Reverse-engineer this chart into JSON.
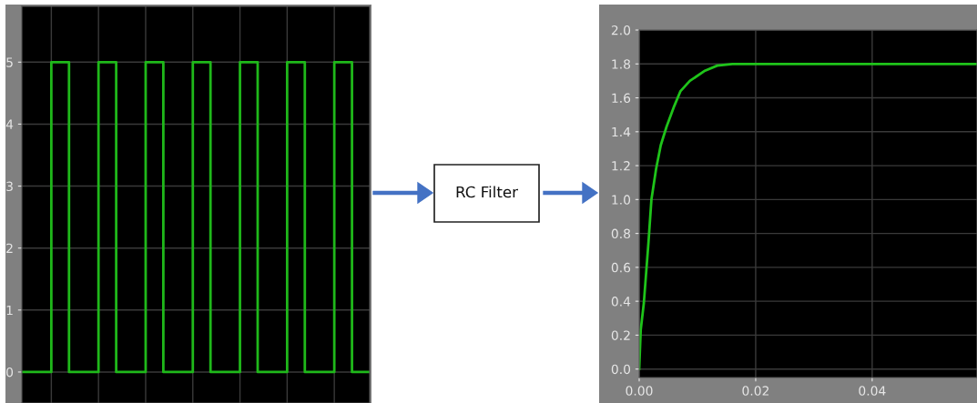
{
  "chart_data": [
    {
      "type": "step",
      "categories": [
        null,
        null,
        null,
        null,
        null,
        null,
        null,
        null,
        null,
        null,
        null,
        null,
        null,
        null,
        null,
        null,
        null,
        null,
        null,
        null,
        null,
        null,
        null,
        null,
        null,
        null,
        null,
        null,
        null,
        null,
        null,
        null,
        null,
        null,
        null,
        null,
        null,
        null,
        null,
        null,
        null,
        null,
        null,
        null,
        null,
        null,
        null,
        null,
        null,
        null,
        null,
        null,
        null,
        null,
        null,
        null,
        null,
        null,
        null,
        null
      ],
      "series": [
        {
          "color": "#1fb81a",
          "values": [
            0,
            0,
            0,
            0,
            0,
            5,
            5,
            5,
            0,
            0,
            0,
            0,
            0,
            5,
            5,
            5,
            0,
            0,
            0,
            0,
            0,
            5,
            5,
            5,
            0,
            0,
            0,
            0,
            0,
            5,
            5,
            5,
            0,
            0,
            0,
            0,
            0,
            5,
            5,
            5,
            0,
            0,
            0,
            0,
            0,
            5,
            5,
            5,
            0,
            0,
            0,
            0,
            0,
            5,
            5,
            5,
            0,
            0,
            0,
            0
          ]
        }
      ],
      "ylim": [
        -0.5,
        5.9
      ],
      "yticks": [
        0,
        1,
        2,
        3,
        4,
        5
      ],
      "grid": true,
      "tick_labels": "y"
    },
    {
      "type": "other",
      "annotations": [
        "RC Filter"
      ]
    },
    {
      "type": "line",
      "x": [
        0,
        0.00026,
        0.0008,
        0.0016,
        0.0021,
        0.0029,
        0.0037,
        0.0047,
        0.006,
        0.0071,
        0.0087,
        0.0113,
        0.0134,
        0.016,
        0.0213,
        0.058
      ],
      "series": [
        {
          "color": "#1fc41a",
          "values": [
            0,
            0.23,
            0.39,
            0.75,
            1.0,
            1.18,
            1.32,
            1.43,
            1.55,
            1.64,
            1.7,
            1.76,
            1.79,
            1.8,
            1.8,
            1.8
          ]
        }
      ],
      "xlim": [
        0,
        0.058
      ],
      "xticks": [
        {
          "value": 0,
          "label": "0.00"
        },
        {
          "value": 0.02,
          "label": "0.02"
        },
        {
          "value": 0.04,
          "label": "0.04"
        }
      ],
      "ylim": [
        -0.05,
        2.0
      ],
      "yticks": [
        {
          "value": 0,
          "label": "0.0"
        },
        {
          "value": 0.2,
          "label": "0.2"
        },
        {
          "value": 0.4,
          "label": "0.4"
        },
        {
          "value": 0.6,
          "label": "0.6"
        },
        {
          "value": 0.8,
          "label": "0.8"
        },
        {
          "value": 1.0,
          "label": "1.0"
        },
        {
          "value": 1.2,
          "label": "1.2"
        },
        {
          "value": 1.4,
          "label": "1.4"
        },
        {
          "value": 1.6,
          "label": "1.6"
        },
        {
          "value": 1.8,
          "label": "1.8"
        },
        {
          "value": 2.0,
          "label": "2.0"
        }
      ],
      "grid": true
    }
  ]
}
